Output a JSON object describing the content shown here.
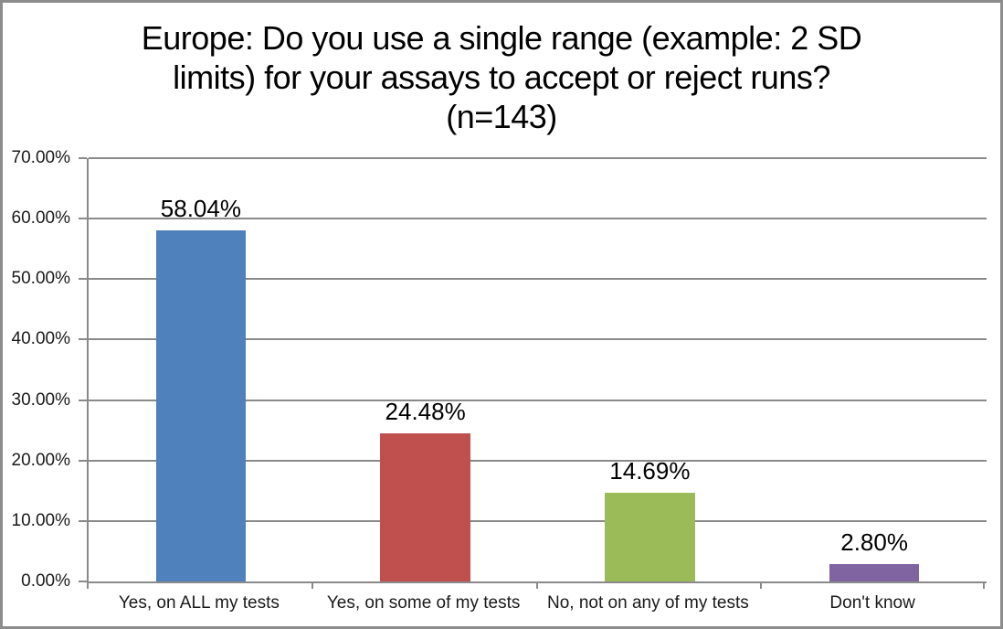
{
  "chart": {
    "title_lines": [
      "Europe: Do you use a single range (example: 2 SD",
      "limits) for your assays to accept or reject runs?",
      "(n=143)"
    ]
  },
  "chart_data": {
    "type": "bar",
    "title": "Europe: Do you use a single range (example: 2 SD limits) for your assays to accept or reject runs? (n=143)",
    "categories": [
      "Yes, on ALL my tests",
      "Yes, on some of my tests",
      "No, not on any of my tests",
      "Don't know"
    ],
    "values": [
      58.04,
      24.48,
      14.69,
      2.8
    ],
    "value_labels": [
      "58.04%",
      "24.48%",
      "14.69%",
      "2.80%"
    ],
    "bar_colors": [
      "#4F81BD",
      "#C0504D",
      "#9BBB59",
      "#8064A2"
    ],
    "xlabel": "",
    "ylabel": "",
    "ylim": [
      0,
      70
    ],
    "y_tick_values": [
      0,
      10,
      20,
      30,
      40,
      50,
      60,
      70
    ],
    "y_tick_labels": [
      "0.00%",
      "10.00%",
      "20.00%",
      "30.00%",
      "40.00%",
      "50.00%",
      "60.00%",
      "70.00%"
    ],
    "grid": true,
    "legend_position": "none",
    "colors": {
      "axis": "#8a8a8a",
      "gridline": "#8a8a8a",
      "frame_border": "#8c8c8c",
      "background": "#ffffff",
      "text": "#000000"
    }
  }
}
